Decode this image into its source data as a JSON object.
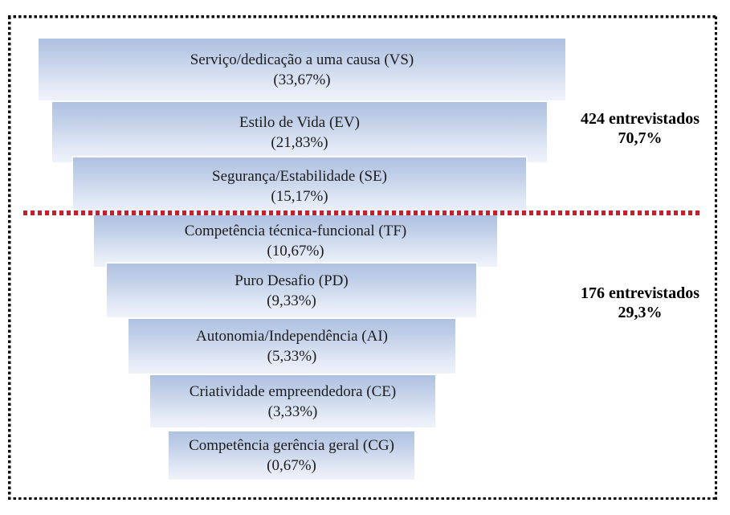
{
  "chart_data": {
    "type": "bar",
    "variant": "centered-funnel",
    "title": "",
    "xlabel": "",
    "ylabel": "",
    "categories": [
      "Serviço/dedicação a uma causa (VS)",
      "Estilo de Vida (EV)",
      "Segurança/Estabilidade (SE)",
      "Competência técnica-funcional (TF)",
      "Puro Desafio (PD)",
      "Autonomia/Independência (AI)",
      "Criatividade empreendedora (CE)",
      "Competência gerência geral (CG)"
    ],
    "values": [
      33.67,
      21.83,
      15.17,
      10.67,
      9.33,
      5.33,
      3.33,
      0.67
    ],
    "value_labels": [
      "(33,67%)",
      "(21,83%)",
      "(15,17%)",
      "(10,67%)",
      "(9,33%)",
      "(5,33%)",
      "(3,33%)",
      "(0,67%)"
    ],
    "groups": [
      {
        "label": "424 entrevistados",
        "percent": "70,7%",
        "categories_included": [
          "VS",
          "EV",
          "SE"
        ]
      },
      {
        "label": "176 entrevistados",
        "percent": "29,3%",
        "categories_included": [
          "TF",
          "PD",
          "AI",
          "CE",
          "CG"
        ]
      }
    ],
    "legend": "none",
    "grid": false,
    "layout_hint": "horizontal centered bars, widest on top, red dashed cutoff line between SE and TF"
  },
  "funnel": {
    "items": [
      {
        "label": "Serviço/dedicação a uma causa (VS)",
        "percent_label": "(33,67%)"
      },
      {
        "label": "Estilo de Vida (EV)",
        "percent_label": "(21,83%)"
      },
      {
        "label": "Segurança/Estabilidade (SE)",
        "percent_label": "(15,17%)"
      },
      {
        "label": "Competência técnica-funcional (TF)",
        "percent_label": "(10,67%)"
      },
      {
        "label": "Puro Desafio (PD)",
        "percent_label": "(9,33%)"
      },
      {
        "label": "Autonomia/Independência (AI)",
        "percent_label": "(5,33%)"
      },
      {
        "label": "Criatividade empreendedora (CE)",
        "percent_label": "(3,33%)"
      },
      {
        "label": "Competência gerência geral (CG)",
        "percent_label": "(0,67%)"
      }
    ]
  },
  "annotations": [
    {
      "line1": "424 entrevistados",
      "line2": "70,7%"
    },
    {
      "line1": "176 entrevistados",
      "line2": "29,3%"
    }
  ],
  "colors": {
    "bar_gradient_top": "#aec1e1",
    "bar_gradient_bottom": "#eef2fa",
    "divider_red": "#c0212c",
    "frame_black": "#0a0a0a",
    "text": "#1c1c1c"
  }
}
